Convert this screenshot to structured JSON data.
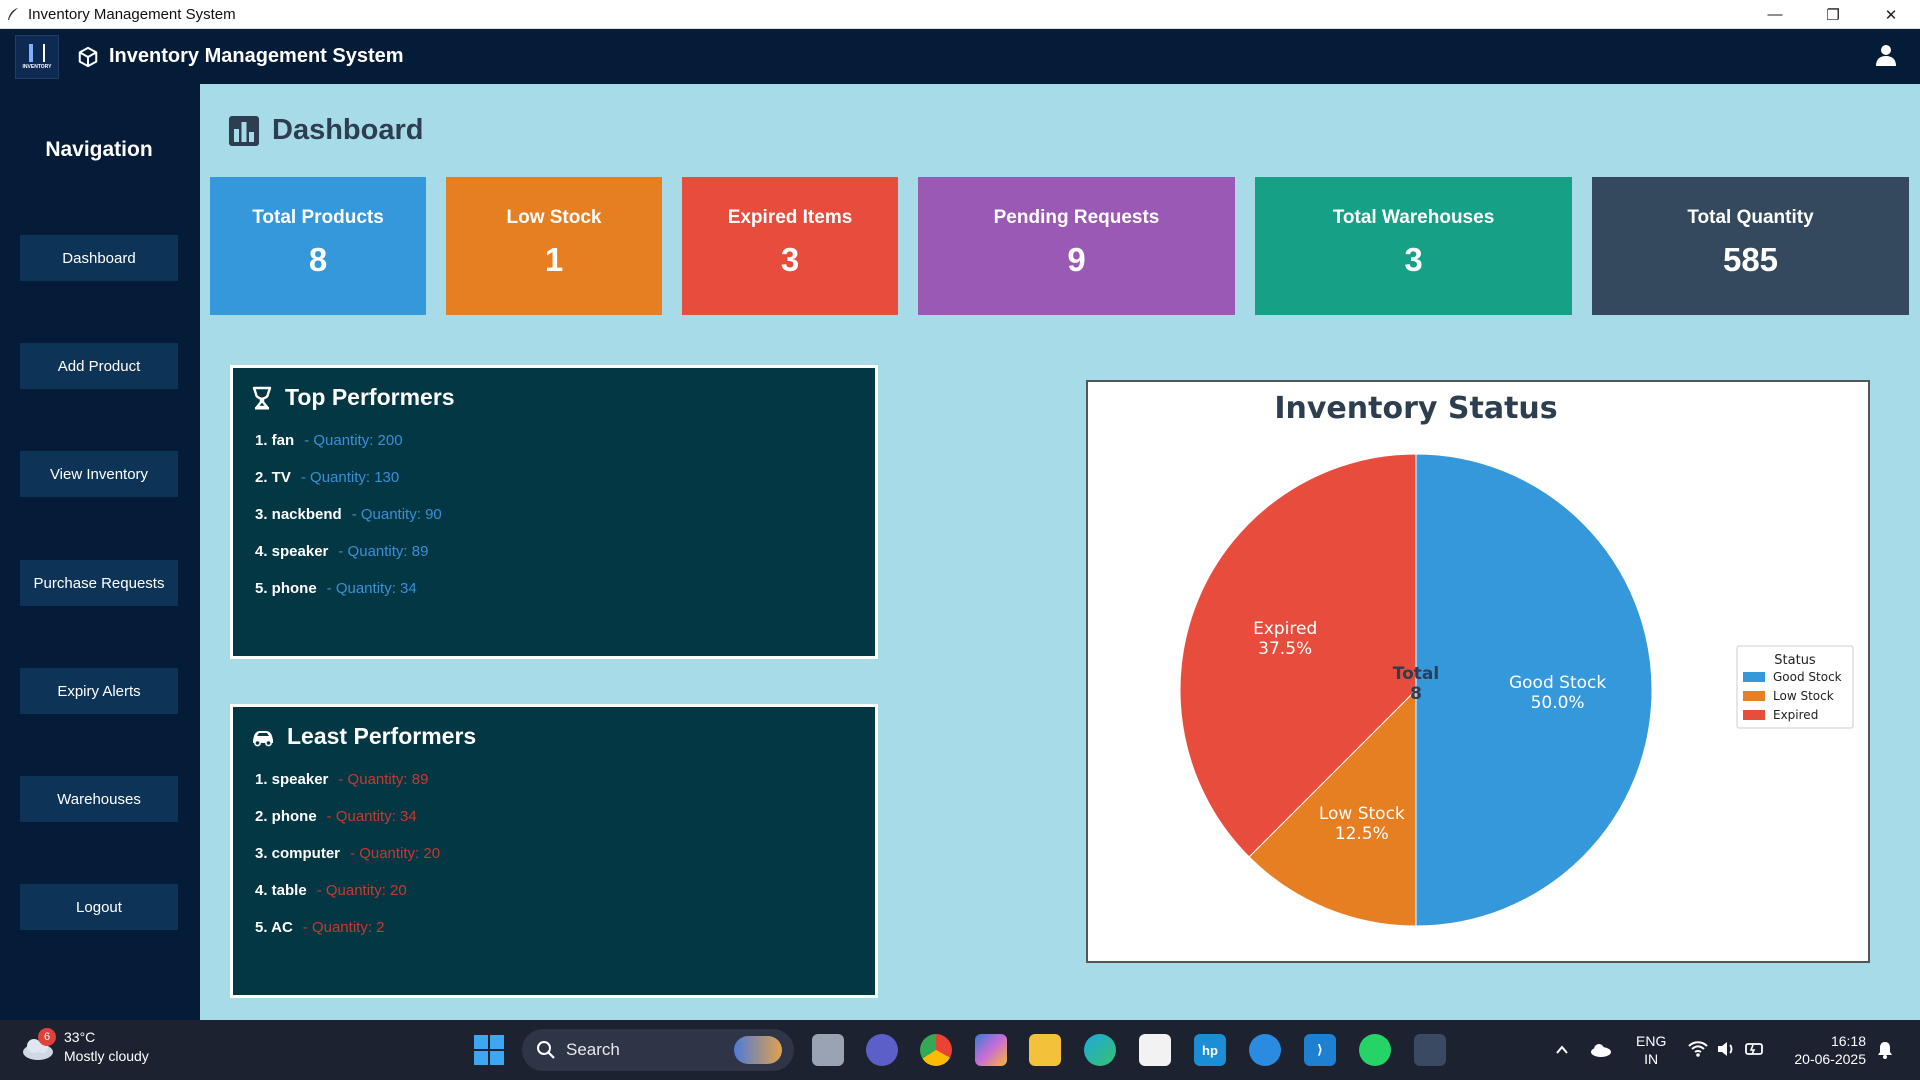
{
  "window": {
    "title": "Inventory Management System",
    "min": "—",
    "max": "❐",
    "close": "✕"
  },
  "header": {
    "title": "Inventory Management System",
    "logo_text": "INVENTORY"
  },
  "sidebar": {
    "title": "Navigation",
    "items": [
      {
        "label": "Dashboard"
      },
      {
        "label": "Add Product"
      },
      {
        "label": "View Inventory"
      },
      {
        "label": "Purchase Requests"
      },
      {
        "label": "Expiry Alerts"
      },
      {
        "label": "Warehouses"
      },
      {
        "label": "Logout"
      }
    ]
  },
  "page": {
    "title": "Dashboard"
  },
  "cards": [
    {
      "label": "Total Products",
      "value": "8",
      "color": "#3498db"
    },
    {
      "label": "Low Stock",
      "value": "1",
      "color": "#e67e22"
    },
    {
      "label": "Expired Items",
      "value": "3",
      "color": "#e74c3c"
    },
    {
      "label": "Pending Requests",
      "value": "9",
      "color": "#9b59b6"
    },
    {
      "label": "Total Warehouses",
      "value": "3",
      "color": "#16a085"
    },
    {
      "label": "Total Quantity",
      "value": "585",
      "color": "#34495e"
    }
  ],
  "top_performers": {
    "title": "Top Performers",
    "items": [
      {
        "name": "1. fan",
        "qty": "- Quantity: 200"
      },
      {
        "name": "2. TV",
        "qty": "- Quantity: 130"
      },
      {
        "name": "3. nackbend",
        "qty": "- Quantity: 90"
      },
      {
        "name": "4. speaker",
        "qty": "- Quantity: 89"
      },
      {
        "name": "5. phone",
        "qty": "- Quantity: 34"
      }
    ]
  },
  "least_performers": {
    "title": "Least Performers",
    "items": [
      {
        "name": "1. speaker",
        "qty": "- Quantity: 89"
      },
      {
        "name": "2. phone",
        "qty": "- Quantity: 34"
      },
      {
        "name": "3. computer",
        "qty": "- Quantity: 20"
      },
      {
        "name": "4. table",
        "qty": "- Quantity: 20"
      },
      {
        "name": "5. AC",
        "qty": "- Quantity: 2"
      }
    ]
  },
  "chart_data": {
    "type": "pie",
    "title": "Inventory Status",
    "center_label": [
      "Total",
      "8"
    ],
    "legend_title": "Status",
    "legend_position": "right",
    "slices": [
      {
        "name": "Good Stock",
        "value": 4,
        "pct": "50.0%",
        "color": "#3498db"
      },
      {
        "name": "Low Stock",
        "value": 1,
        "pct": "12.5%",
        "color": "#e67e22"
      },
      {
        "name": "Expired",
        "value": 3,
        "pct": "37.5%",
        "color": "#e74c3c"
      }
    ]
  },
  "taskbar": {
    "weather_temp": "33°C",
    "weather_desc": "Mostly cloudy",
    "weather_badge": "6",
    "search_label": "Search",
    "lang_top": "ENG",
    "lang_bottom": "IN",
    "time": "16:18",
    "date": "20-06-2025",
    "vscode_glyph": "⟩",
    "hp_label": "hp"
  }
}
